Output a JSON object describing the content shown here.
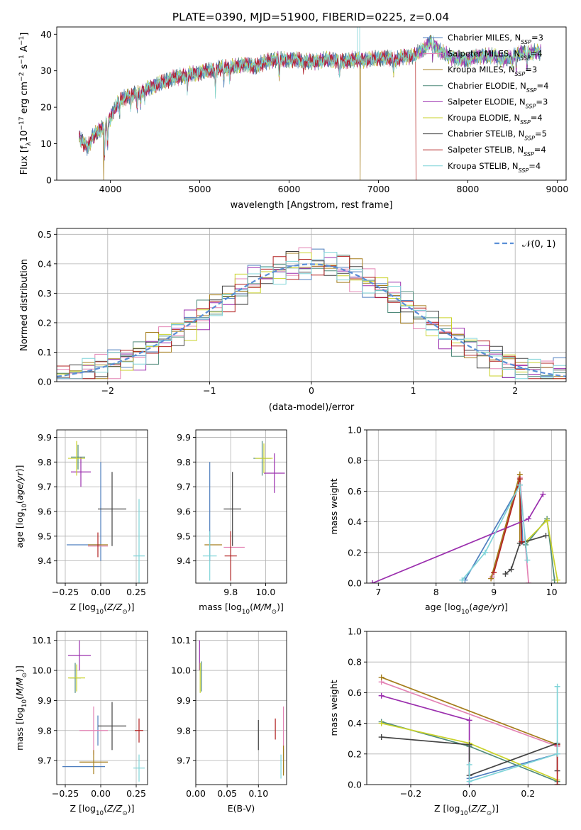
{
  "figure": {
    "title": "PLATE=0390, MJD=51900, FIBERID=0225, z=0.04"
  },
  "models": [
    {
      "name": "Chabrier MILES, N_SSP=3",
      "label_main": "Chabrier MILES, N",
      "label_sub": "SSP",
      "label_tail": "=3",
      "color": "#4f7fbf"
    },
    {
      "name": "Salpeter MILES, N_SSP=4",
      "label_main": "Salpeter MILES, N",
      "label_sub": "SSP",
      "label_tail": "=4",
      "color": "#e383b4"
    },
    {
      "name": "Kroupa MILES, N_SSP=3",
      "label_main": "Kroupa MILES, N",
      "label_sub": "SSP",
      "label_tail": "=3",
      "color": "#a57d1c"
    },
    {
      "name": "Chabrier ELODIE, N_SSP=4",
      "label_main": "Chabrier ELODIE, N",
      "label_sub": "SSP",
      "label_tail": "=4",
      "color": "#4f8a7a"
    },
    {
      "name": "Salpeter ELODIE, N_SSP=3",
      "label_main": "Salpeter ELODIE, N",
      "label_sub": "SSP",
      "label_tail": "=3",
      "color": "#9b2fae"
    },
    {
      "name": "Kroupa ELODIE, N_SSP=4",
      "label_main": "Kroupa ELODIE, N",
      "label_sub": "SSP",
      "label_tail": "=4",
      "color": "#c9d22a"
    },
    {
      "name": "Chabrier STELIB, N_SSP=5",
      "label_main": "Chabrier STELIB, N",
      "label_sub": "SSP",
      "label_tail": "=5",
      "color": "#444444"
    },
    {
      "name": "Salpeter STELIB, N_SSP=4",
      "label_main": "Salpeter STELIB, N",
      "label_sub": "SSP",
      "label_tail": "=4",
      "color": "#b22222"
    },
    {
      "name": "Kroupa STELIB, N_SSP=4",
      "label_main": "Kroupa STELIB, N",
      "label_sub": "SSP",
      "label_tail": "=4",
      "color": "#7fd4d8"
    }
  ],
  "chart_data": [
    {
      "id": "spectrum",
      "type": "line",
      "title": "PLATE=0390, MJD=51900, FIBERID=0225, z=0.04",
      "xlabel": "wavelength [Angstrom, rest frame]",
      "ylabel_parts": [
        "Flux [f",
        "λ",
        "10",
        "−17",
        " erg cm",
        "−2",
        " s",
        "−1",
        " A",
        "−1",
        "]"
      ],
      "xlim": [
        3400,
        9100
      ],
      "ylim": [
        0,
        42
      ],
      "xticks": [
        4000,
        5000,
        6000,
        7000,
        8000,
        9000
      ],
      "yticks": [
        0,
        10,
        20,
        30,
        40
      ],
      "legend_position": "right",
      "continuum": {
        "x": [
          3650,
          3700,
          3750,
          3800,
          3900,
          4000,
          4100,
          4200,
          4300,
          4400,
          4500,
          4600,
          4700,
          4800,
          4900,
          5000,
          5100,
          5200,
          5300,
          5400,
          5500,
          5600,
          5700,
          5800,
          5900,
          6000,
          6100,
          6200,
          6300,
          6400,
          6500,
          6600,
          6700,
          6800,
          6900,
          7000,
          7100,
          7200,
          7300,
          7400,
          7500,
          7600,
          7700,
          7800,
          7900,
          8000,
          8100,
          8200,
          8300,
          8400,
          8500,
          8600,
          8700,
          8800
        ],
        "y": [
          12,
          10,
          9,
          12,
          14,
          17,
          22,
          23,
          24,
          25,
          26,
          27,
          28,
          28.5,
          29,
          29.5,
          30,
          30.5,
          31,
          31,
          32,
          31,
          32,
          33,
          33,
          33,
          33,
          32.5,
          32.5,
          33,
          33,
          32.5,
          33,
          33,
          33,
          33.5,
          33.5,
          33,
          34,
          34,
          36,
          38,
          35,
          34,
          33,
          33,
          34,
          34,
          34,
          33,
          34,
          35,
          35,
          35
        ]
      },
      "dips": [
        {
          "x": 3934,
          "depth": 9
        },
        {
          "x": 3969,
          "depth": 7
        },
        {
          "x": 4102,
          "depth": 4
        },
        {
          "x": 4227,
          "depth": 3
        },
        {
          "x": 4300,
          "depth": 4
        },
        {
          "x": 4340,
          "depth": 4
        },
        {
          "x": 4383,
          "depth": 3
        },
        {
          "x": 4861,
          "depth": 4
        },
        {
          "x": 5175,
          "depth": 6
        },
        {
          "x": 5270,
          "depth": 3
        },
        {
          "x": 5335,
          "depth": 3
        },
        {
          "x": 5890,
          "depth": 5
        },
        {
          "x": 6160,
          "depth": 2
        },
        {
          "x": 6563,
          "depth": 4
        },
        {
          "x": 7170,
          "depth": 3
        },
        {
          "x": 7605,
          "depth": 4
        },
        {
          "x": 8498,
          "depth": 3
        },
        {
          "x": 8542,
          "depth": 4
        },
        {
          "x": 8662,
          "depth": 4
        }
      ],
      "dropouts": [
        {
          "x": 3925,
          "model": 2
        },
        {
          "x": 6795,
          "model": 2
        },
        {
          "x": 7420,
          "model": 7
        }
      ],
      "spikes": [
        {
          "x": 6762,
          "y": 44
        },
        {
          "x": 6790,
          "y": 45
        }
      ]
    },
    {
      "id": "residuals",
      "type": "step",
      "xlabel": "(data-model)/error",
      "ylabel": "Normed distribution",
      "xlim": [
        -2.5,
        2.5
      ],
      "ylim": [
        0,
        0.52
      ],
      "xticks": [
        -2,
        -1,
        0,
        1,
        2
      ],
      "yticks": [
        0,
        0.1,
        0.2,
        0.3,
        0.4,
        0.5
      ],
      "bin_width": 0.125,
      "reference_curve": {
        "name": "𝒩(0, 1)",
        "mean": 0,
        "sigma": 1,
        "color": "#5b8fd6"
      },
      "legend_position": "upper right"
    },
    {
      "id": "age_vs_Z",
      "type": "errorbar",
      "xlabel_parts": [
        "Z [log",
        "10",
        "(",
        "Z/Z",
        "⊙",
        ")]"
      ],
      "ylabel_parts": [
        "age  [log",
        "10",
        "(",
        "age/yr",
        ")]"
      ],
      "xlim": [
        -0.31,
        0.33
      ],
      "ylim": [
        9.31,
        9.93
      ],
      "xticks": [
        -0.25,
        0.0,
        0.25
      ],
      "yticks": [
        9.4,
        9.5,
        9.6,
        9.7,
        9.8,
        9.9
      ],
      "points": [
        {
          "m": 0,
          "x": 0.0,
          "y": 9.6,
          "xerr": 0.0,
          "yerr": 0.2
        },
        {
          "m": 0,
          "x": -0.12,
          "y": 9.465,
          "xerr": 0.12,
          "yerr": 0.0
        },
        {
          "m": 1,
          "x": -0.02,
          "y": 9.46,
          "xerr": 0.07,
          "yerr": 0.0
        },
        {
          "m": 2,
          "x": -0.02,
          "y": 9.465,
          "xerr": 0.07,
          "yerr": 0.0
        },
        {
          "m": 3,
          "x": -0.16,
          "y": 9.82,
          "xerr": 0.05,
          "yerr": 0.05
        },
        {
          "m": 4,
          "x": -0.14,
          "y": 9.76,
          "xerr": 0.07,
          "yerr": 0.06
        },
        {
          "m": 5,
          "x": -0.17,
          "y": 9.815,
          "xerr": 0.06,
          "yerr": 0.07
        },
        {
          "m": 6,
          "x": 0.08,
          "y": 9.61,
          "xerr": 0.1,
          "yerr": 0.15
        },
        {
          "m": 7,
          "x": -0.02,
          "y": 9.465,
          "xerr": 0.0,
          "yerr": 0.05
        },
        {
          "m": 8,
          "x": 0.27,
          "y": 9.42,
          "xerr": 0.04,
          "yerr": 0.23
        }
      ]
    },
    {
      "id": "age_vs_mass",
      "type": "errorbar",
      "xlabel_parts": [
        "mass [log",
        "10",
        "(",
        "M/M",
        "⊙",
        ")]"
      ],
      "xlim": [
        9.6,
        10.12
      ],
      "ylim": [
        9.31,
        9.93
      ],
      "xticks": [
        9.8,
        10.0
      ],
      "yticks": [
        9.4,
        9.5,
        9.6,
        9.7,
        9.8,
        9.9
      ],
      "points": [
        {
          "m": 0,
          "x": 9.68,
          "y": 9.6,
          "xerr": 0.0,
          "yerr": 0.2
        },
        {
          "m": 1,
          "x": 9.82,
          "y": 9.455,
          "xerr": 0.06,
          "yerr": 0.0
        },
        {
          "m": 2,
          "x": 9.7,
          "y": 9.465,
          "xerr": 0.05,
          "yerr": 0.0
        },
        {
          "m": 3,
          "x": 9.98,
          "y": 9.815,
          "xerr": 0.05,
          "yerr": 0.07
        },
        {
          "m": 4,
          "x": 10.05,
          "y": 9.755,
          "xerr": 0.06,
          "yerr": 0.08
        },
        {
          "m": 5,
          "x": 9.99,
          "y": 9.815,
          "xerr": 0.05,
          "yerr": 0.06
        },
        {
          "m": 6,
          "x": 9.81,
          "y": 9.61,
          "xerr": 0.05,
          "yerr": 0.15
        },
        {
          "m": 7,
          "x": 9.8,
          "y": 9.42,
          "xerr": 0.035,
          "yerr": 0.1
        },
        {
          "m": 8,
          "x": 9.68,
          "y": 9.42,
          "xerr": 0.04,
          "yerr": 0.1
        }
      ]
    },
    {
      "id": "weight_vs_age",
      "type": "line",
      "xlabel_parts": [
        "age  [log",
        "10",
        "(",
        "age/yr",
        ")]"
      ],
      "ylabel": "mass weight",
      "xlim": [
        6.8,
        10.25
      ],
      "ylim": [
        0,
        1
      ],
      "xticks": [
        7,
        8,
        9,
        10
      ],
      "yticks": [
        0,
        0.2,
        0.4,
        0.6,
        0.8,
        1.0
      ],
      "series": [
        {
          "m": 0,
          "points": [
            [
              8.5,
              0.02
            ],
            [
              9.45,
              0.64
            ],
            [
              9.5,
              0.27
            ]
          ]
        },
        {
          "m": 1,
          "points": [
            [
              8.97,
              0.04
            ],
            [
              9.45,
              0.69
            ],
            [
              9.6,
              0.0
            ]
          ]
        },
        {
          "m": 2,
          "points": [
            [
              8.95,
              0.03
            ],
            [
              9.45,
              0.71
            ],
            [
              9.45,
              0.26
            ]
          ]
        },
        {
          "m": 3,
          "points": [
            [
              9.55,
              0.25
            ],
            [
              9.92,
              0.42
            ],
            [
              10.05,
              0.02
            ]
          ]
        },
        {
          "m": 4,
          "points": [
            [
              6.9,
              0.0
            ],
            [
              9.6,
              0.42
            ],
            [
              9.85,
              0.58
            ]
          ]
        },
        {
          "m": 5,
          "points": [
            [
              9.55,
              0.27
            ],
            [
              9.92,
              0.41
            ],
            [
              10.1,
              0.02
            ]
          ]
        },
        {
          "m": 6,
          "points": [
            [
              9.2,
              0.06
            ],
            [
              9.3,
              0.09
            ],
            [
              9.45,
              0.26
            ],
            [
              9.9,
              0.31
            ]
          ]
        },
        {
          "m": 7,
          "points": [
            [
              9.0,
              0.07
            ],
            [
              9.45,
              0.68
            ],
            [
              9.48,
              0.27
            ]
          ]
        },
        {
          "m": 8,
          "points": [
            [
              8.45,
              0.02
            ],
            [
              8.85,
              0.2
            ],
            [
              9.45,
              0.64
            ],
            [
              9.58,
              0.15
            ]
          ]
        }
      ]
    },
    {
      "id": "mass_vs_Z",
      "type": "errorbar",
      "xlabel_parts": [
        "Z [log",
        "10",
        "(",
        "Z/Z",
        "⊙",
        ")]"
      ],
      "ylabel_parts": [
        "mass [log",
        "10",
        "(",
        "M/M",
        "⊙",
        ")]"
      ],
      "xlim": [
        -0.31,
        0.33
      ],
      "ylim": [
        9.62,
        10.13
      ],
      "xticks": [
        -0.25,
        0.0,
        0.25
      ],
      "yticks": [
        9.7,
        9.8,
        9.9,
        10.0,
        10.1
      ],
      "points": [
        {
          "m": 0,
          "x": -0.12,
          "y": 9.68,
          "xerr": 0.15,
          "yerr": 0.0
        },
        {
          "m": 0,
          "x": -0.02,
          "y": 9.8,
          "xerr": 0.0,
          "yerr": 0.05
        },
        {
          "m": 1,
          "x": -0.05,
          "y": 9.8,
          "xerr": 0.1,
          "yerr": 0.08
        },
        {
          "m": 2,
          "x": -0.05,
          "y": 9.695,
          "xerr": 0.1,
          "yerr": 0.04
        },
        {
          "m": 3,
          "x": -0.18,
          "y": 9.975,
          "xerr": 0.04,
          "yerr": 0.05
        },
        {
          "m": 4,
          "x": -0.15,
          "y": 10.05,
          "xerr": 0.08,
          "yerr": 0.05
        },
        {
          "m": 5,
          "x": -0.17,
          "y": 9.975,
          "xerr": 0.06,
          "yerr": 0.045
        },
        {
          "m": 6,
          "x": 0.08,
          "y": 9.815,
          "xerr": 0.1,
          "yerr": 0.08
        },
        {
          "m": 7,
          "x": 0.27,
          "y": 9.8,
          "xerr": 0.03,
          "yerr": 0.04
        },
        {
          "m": 8,
          "x": 0.27,
          "y": 9.675,
          "xerr": 0.04,
          "yerr": 0.045
        }
      ]
    },
    {
      "id": "mass_vs_ebv",
      "type": "errorbar",
      "xlabel": "E(B-V)",
      "xlim": [
        0.0,
        0.145
      ],
      "ylim": [
        9.62,
        10.13
      ],
      "xticks": [
        0.0,
        0.05,
        0.1
      ],
      "yticks": [
        9.7,
        9.8,
        9.9,
        10.0,
        10.1
      ],
      "points": [
        {
          "m": 0,
          "x": 0.14,
          "y": 9.7,
          "xerr": 0.0,
          "yerr": 0.04
        },
        {
          "m": 1,
          "x": 0.14,
          "y": 9.81,
          "xerr": 0.0,
          "yerr": 0.07
        },
        {
          "m": 2,
          "x": 0.14,
          "y": 9.7,
          "xerr": 0.0,
          "yerr": 0.05
        },
        {
          "m": 3,
          "x": 0.009,
          "y": 9.98,
          "xerr": 0.0,
          "yerr": 0.05
        },
        {
          "m": 4,
          "x": 0.006,
          "y": 10.05,
          "xerr": 0.0,
          "yerr": 0.05
        },
        {
          "m": 5,
          "x": 0.007,
          "y": 9.975,
          "xerr": 0.0,
          "yerr": 0.05
        },
        {
          "m": 6,
          "x": 0.1,
          "y": 9.785,
          "xerr": 0.0,
          "yerr": 0.05
        },
        {
          "m": 7,
          "x": 0.127,
          "y": 9.805,
          "xerr": 0.0,
          "yerr": 0.035
        },
        {
          "m": 8,
          "x": 0.136,
          "y": 9.68,
          "xerr": 0.0,
          "yerr": 0.04
        }
      ]
    },
    {
      "id": "weight_vs_Z",
      "type": "line",
      "xlabel_parts": [
        "Z [log",
        "10",
        "(",
        "Z/Z",
        "⊙",
        ")]"
      ],
      "ylabel": "mass weight",
      "xlim": [
        -0.35,
        0.33
      ],
      "ylim": [
        0,
        1
      ],
      "xticks": [
        -0.2,
        0.0,
        0.2
      ],
      "yticks": [
        0,
        0.2,
        0.4,
        0.6,
        0.8,
        1.0
      ],
      "series": [
        {
          "m": 0,
          "points": [
            [
              0.0,
              0.04
            ],
            [
              0.3,
              0.2
            ]
          ]
        },
        {
          "m": 1,
          "points": [
            [
              -0.3,
              0.67
            ],
            [
              0.3,
              0.25
            ]
          ]
        },
        {
          "m": 2,
          "points": [
            [
              -0.3,
              0.7
            ],
            [
              0.3,
              0.26
            ]
          ]
        },
        {
          "m": 3,
          "points": [
            [
              -0.3,
              0.41
            ],
            [
              0.0,
              0.25
            ],
            [
              0.3,
              0.02
            ]
          ]
        },
        {
          "m": 4,
          "points": [
            [
              -0.3,
              0.58
            ],
            [
              0.0,
              0.42
            ],
            [
              0.0,
              0.0
            ]
          ]
        },
        {
          "m": 5,
          "points": [
            [
              -0.3,
              0.4
            ],
            [
              0.0,
              0.27
            ],
            [
              0.3,
              0.03
            ]
          ]
        },
        {
          "m": 6,
          "points": [
            [
              -0.3,
              0.31
            ],
            [
              0.0,
              0.26
            ],
            [
              0.0,
              0.06
            ],
            [
              0.3,
              0.27
            ],
            [
              0.3,
              0.09
            ]
          ]
        },
        {
          "m": 7,
          "points": [
            [
              0.3,
              0.26
            ],
            [
              0.3,
              0.0
            ]
          ]
        },
        {
          "m": 8,
          "points": [
            [
              0.0,
              0.13
            ],
            [
              0.0,
              0.02
            ],
            [
              0.3,
              0.2
            ],
            [
              0.3,
              0.64
            ]
          ]
        }
      ]
    }
  ]
}
